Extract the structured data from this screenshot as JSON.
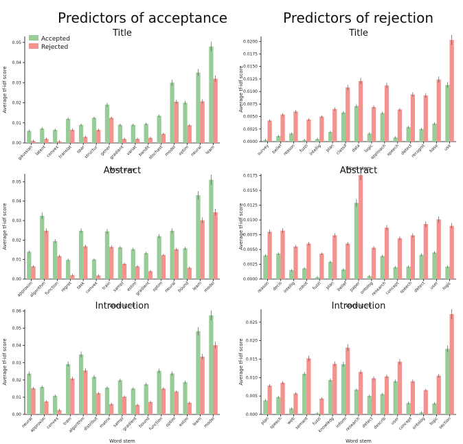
{
  "headings": {
    "left": "Predictors of acceptance",
    "right": "Predictors of rejection"
  },
  "legend": {
    "accepted": "Accepted",
    "rejected": "Rejected"
  },
  "colors": {
    "accepted": "#98cc98",
    "rejected": "#f4928e",
    "error": "#555555"
  },
  "chart_data": [
    {
      "type": "bar",
      "title": "Title",
      "xlabel": "Word stem",
      "ylabel": "Average tf-idf score",
      "ylim": [
        0,
        0.053
      ],
      "yticks": [
        "0.00",
        "0.01",
        "0.02",
        "0.03",
        "0.04",
        "0.05"
      ],
      "categories": [
        "gaussian",
        "latent",
        "convex",
        "translat",
        "spar",
        "structur",
        "gener",
        "gradient",
        "variat",
        "bandit",
        "stochast",
        "model",
        "optim",
        "neural",
        "learn"
      ],
      "series": [
        {
          "name": "Accepted",
          "values": [
            0.006,
            0.0072,
            0.0065,
            0.012,
            0.009,
            0.0125,
            0.019,
            0.009,
            0.009,
            0.0095,
            0.0135,
            0.03,
            0.02,
            0.035,
            0.048
          ]
        },
        {
          "name": "Rejected",
          "values": [
            0.001,
            0.002,
            0.0008,
            0.0065,
            0.003,
            0.0065,
            0.0125,
            0.002,
            0.002,
            0.0025,
            0.0045,
            0.0205,
            0.0088,
            0.0207,
            0.032
          ]
        }
      ],
      "legend": "top-left"
    },
    {
      "type": "bar",
      "title": "Title",
      "xlabel": "Word stem",
      "ylabel": "Average tf-idf score",
      "ylim": [
        0,
        0.021
      ],
      "yticks": [
        "0.0000",
        "0.0025",
        "0.0050",
        "0.0075",
        "0.0100",
        "0.0125",
        "0.0150",
        "0.0175",
        "0.0200"
      ],
      "categories": [
        "survey",
        "belief",
        "reason",
        "fuzzi",
        "intellig",
        "plan",
        "classif",
        "data",
        "logic",
        "approach",
        "speech",
        "detect",
        "recognit",
        "base",
        "use"
      ],
      "series": [
        {
          "name": "Accepted",
          "values": [
            0.0003,
            0.0011,
            0.0016,
            0.0003,
            0.0005,
            0.0019,
            0.0058,
            0.0071,
            0.0016,
            0.0057,
            0.0008,
            0.0029,
            0.0025,
            0.0036,
            0.0113
          ]
        },
        {
          "name": "Rejected",
          "values": [
            0.0042,
            0.0054,
            0.006,
            0.0044,
            0.005,
            0.0065,
            0.0108,
            0.0121,
            0.0069,
            0.0112,
            0.0064,
            0.0094,
            0.0092,
            0.0124,
            0.0203
          ]
        }
      ]
    },
    {
      "type": "bar",
      "title": "Abstract",
      "xlabel": "Word stem",
      "ylabel": "Average tf-idf score",
      "ylim": [
        0,
        0.054
      ],
      "yticks": [
        "0.00",
        "0.01",
        "0.02",
        "0.03",
        "0.04",
        "0.05"
      ],
      "categories": [
        "approxim",
        "algorithm",
        "function",
        "regret",
        "task",
        "convex",
        "train",
        "sampl",
        "estim",
        "gradient",
        "optim",
        "neural",
        "bound",
        "learn",
        "model"
      ],
      "series": [
        {
          "name": "Accepted",
          "values": [
            0.014,
            0.0325,
            0.0195,
            0.0098,
            0.0248,
            0.01,
            0.0245,
            0.0162,
            0.0153,
            0.0133,
            0.022,
            0.0248,
            0.0158,
            0.043,
            0.051
          ]
        },
        {
          "name": "Rejected",
          "values": [
            0.0065,
            0.0248,
            0.0118,
            0.002,
            0.0168,
            0.0018,
            0.0165,
            0.0078,
            0.0065,
            0.004,
            0.0123,
            0.0153,
            0.0058,
            0.0302,
            0.0343
          ]
        }
      ]
    },
    {
      "type": "bar",
      "title": "Abstract",
      "xlabel": "Word stem",
      "ylabel": "Average tf-idf score",
      "ylim": [
        0,
        0.0178
      ],
      "yticks": [
        "0.0000",
        "0.0025",
        "0.0050",
        "0.0075",
        "0.0100",
        "0.0125",
        "0.0150",
        "0.0175"
      ],
      "categories": [
        "reason",
        "decis",
        "intellig",
        "robot",
        "fuzzi",
        "plan",
        "belief",
        "paper",
        "ontolog",
        "research",
        "concept",
        "speech",
        "detect",
        "user",
        "logic"
      ],
      "series": [
        {
          "name": "Accepted",
          "values": [
            0.004,
            0.0043,
            0.0015,
            0.0018,
            0.0003,
            0.0029,
            0.0016,
            0.0129,
            0.0005,
            0.0039,
            0.002,
            0.0021,
            0.0041,
            0.0045,
            0.0021
          ]
        },
        {
          "name": "Rejected",
          "values": [
            0.008,
            0.0082,
            0.0055,
            0.006,
            0.0043,
            0.0074,
            0.006,
            0.0176,
            0.0053,
            0.0087,
            0.0069,
            0.0074,
            0.0093,
            0.0101,
            0.009
          ]
        }
      ]
    },
    {
      "type": "bar",
      "title": "Introduction",
      "xlabel": "Word stem",
      "ylabel": "Average tf-idf score",
      "ylim": [
        0,
        0.061
      ],
      "yticks": [
        "0.00",
        "0.01",
        "0.02",
        "0.03",
        "0.04",
        "0.05",
        "0.06"
      ],
      "categories": [
        "neural",
        "approxim",
        "convex",
        "train",
        "algorithm",
        "distribut",
        "matrix",
        "sampl",
        "gradient",
        "bound",
        "function",
        "optim",
        "estim",
        "learn",
        "model"
      ],
      "series": [
        {
          "name": "Accepted",
          "values": [
            0.0237,
            0.016,
            0.0108,
            0.0292,
            0.0348,
            0.0218,
            0.0155,
            0.0198,
            0.015,
            0.0175,
            0.0253,
            0.0238,
            0.0187,
            0.0483,
            0.0575
          ]
        },
        {
          "name": "Rejected",
          "values": [
            0.0152,
            0.0075,
            0.0025,
            0.0208,
            0.0255,
            0.0123,
            0.006,
            0.0103,
            0.0055,
            0.0072,
            0.015,
            0.0133,
            0.0068,
            0.0335,
            0.0402
          ]
        }
      ]
    },
    {
      "type": "bar",
      "title": "Introduction",
      "xlabel": "Word stem",
      "ylabel": "Average tf-idf score",
      "ylim": [
        0,
        0.0285
      ],
      "yticks": [
        "0.000",
        "0.005",
        "0.010",
        "0.015",
        "0.020",
        "0.025"
      ],
      "categories": [
        "plan",
        "speech",
        "web",
        "semant",
        "fuzzi",
        "knowledg",
        "inform",
        "research",
        "detect",
        "describ",
        "user",
        "concept",
        "ontolog",
        "logic",
        "section"
      ],
      "series": [
        {
          "name": "Accepted",
          "values": [
            0.0038,
            0.0047,
            0.0016,
            0.011,
            0.0003,
            0.0093,
            0.0136,
            0.0067,
            0.005,
            0.0055,
            0.009,
            0.0031,
            0.0005,
            0.003,
            0.0178
          ]
        },
        {
          "name": "Rejected",
          "values": [
            0.0078,
            0.0086,
            0.0057,
            0.0152,
            0.0043,
            0.0137,
            0.0181,
            0.0115,
            0.0098,
            0.0103,
            0.0143,
            0.009,
            0.0066,
            0.0105,
            0.0272
          ]
        }
      ]
    }
  ]
}
